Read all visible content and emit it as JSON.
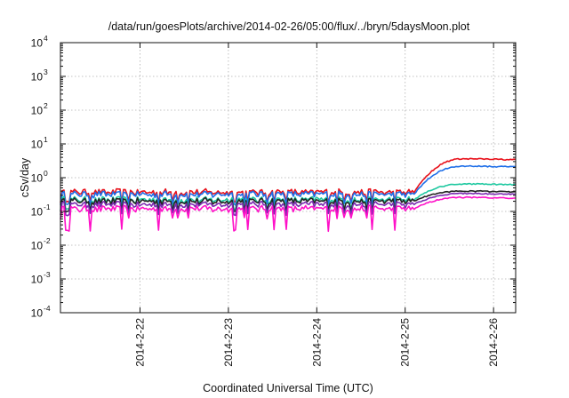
{
  "chart_data": {
    "type": "line",
    "title": "/data/run/goesPlots/archive/2014-02-26/05:00/flux/../bryn/5daysMoon.plot",
    "xlabel": "Coordinated Universal Time (UTC)",
    "ylabel": "cSv/day",
    "yscale": "log",
    "ylim_exponents": [
      -4,
      4
    ],
    "ytick_base": "10",
    "ytick_exponents": [
      "-4",
      "-3",
      "-2",
      "-1",
      "0",
      "1",
      "2",
      "3",
      "4"
    ],
    "xlim_days": [
      21.1,
      26.25
    ],
    "xtick_days": [
      22,
      23,
      24,
      25,
      26
    ],
    "xtick_labels": [
      "2014-2-22",
      "2014-2-23",
      "2014-2-24",
      "2014-2-25",
      "2014-2-26"
    ],
    "grid": true,
    "legend": "none",
    "series": [
      {
        "color": "#e8101a",
        "quiet_level": 0.37,
        "peak_level": 3.6
      },
      {
        "color": "#1e6ee8",
        "quiet_level": 0.32,
        "peak_level": 2.2
      },
      {
        "color": "#1ec8a0",
        "quiet_level": 0.22,
        "peak_level": 0.65
      },
      {
        "color": "#222222",
        "quiet_level": 0.2,
        "peak_level": 0.4
      },
      {
        "color": "#7a2ab0",
        "quiet_level": 0.16,
        "peak_level": 0.34
      },
      {
        "color": "#ff10c8",
        "quiet_level": 0.12,
        "peak_level": 0.26
      }
    ]
  }
}
